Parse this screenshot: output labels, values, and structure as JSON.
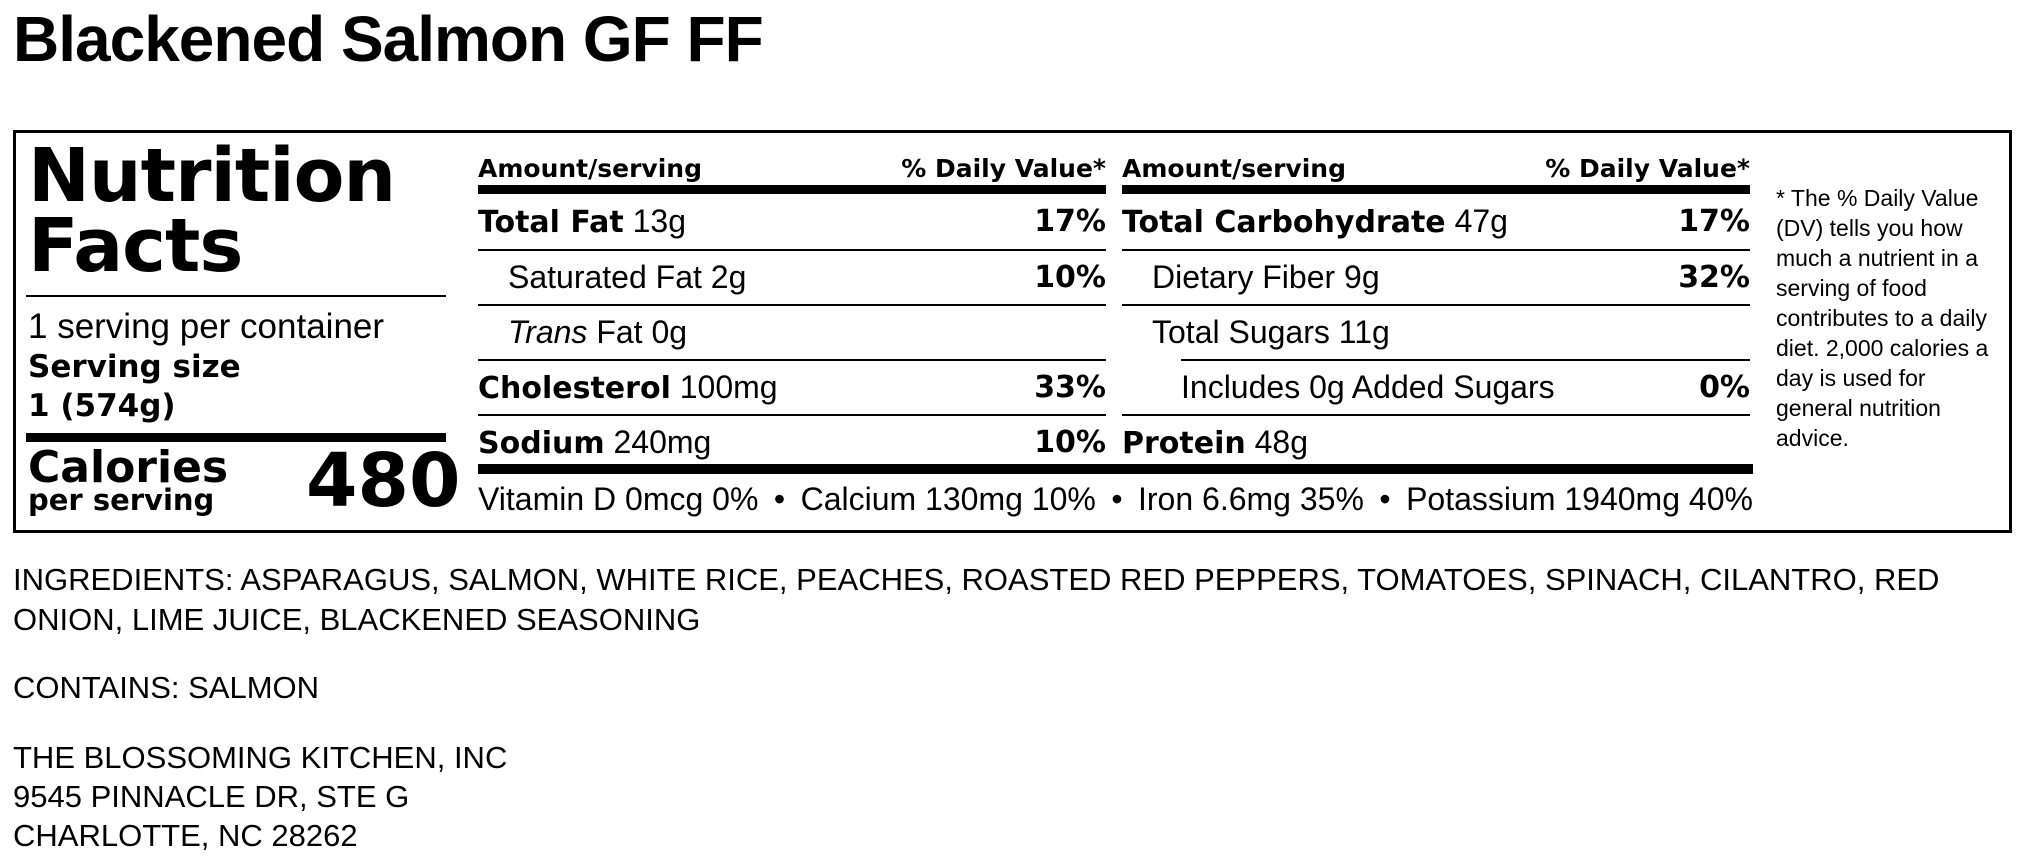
{
  "title": "Blackened Salmon GF FF",
  "label": {
    "heading": "Nutrition Facts",
    "servings_per_container": "1 serving per container",
    "serving_size_label": "Serving size",
    "serving_size": "1 (574g)",
    "calories_label": "Calories",
    "per_serving": "per serving",
    "calories": "480",
    "columns": [
      {
        "header_amount": "Amount/serving",
        "header_dv": "% Daily Value*",
        "rows": [
          {
            "name": "Total Fat",
            "amount": "13g",
            "dv": "17%",
            "children": [
              {
                "name": "Saturated Fat",
                "amount": "2g",
                "dv": "10%"
              },
              {
                "name_italic": "Trans",
                "name": "Fat",
                "amount": "0g"
              }
            ]
          },
          {
            "name": "Cholesterol",
            "amount": "100mg",
            "dv": "33%"
          },
          {
            "name": "Sodium",
            "amount": "240mg",
            "dv": "10%"
          }
        ]
      },
      {
        "header_amount": "Amount/serving",
        "header_dv": "% Daily Value*",
        "rows": [
          {
            "name": "Total Carbohydrate",
            "amount": "47g",
            "dv": "17%",
            "children": [
              {
                "name": "Dietary Fiber",
                "amount": "9g",
                "dv": "32%"
              },
              {
                "name": "Total Sugars",
                "amount": "11g",
                "children": [
                  {
                    "name": "Includes 0g Added Sugars",
                    "dv": "0%"
                  }
                ]
              }
            ]
          },
          {
            "name": "Protein",
            "amount": "48g"
          }
        ]
      }
    ],
    "vitamins": [
      "Vitamin D 0mcg 0%",
      "Calcium 130mg 10%",
      "Iron 6.6mg 35%",
      "Potassium 1940mg 40%"
    ],
    "separator": "•",
    "footnote": "* The % Daily Value (DV) tells you how much a nutrient in a serving of food contributes to a daily diet. 2,000 calories a day is used for general nutrition advice."
  },
  "ingredients": "INGREDIENTS: ASPARAGUS, SALMON, WHITE RICE, PEACHES, ROASTED RED PEPPERS, TOMATOES, SPINACH, CILANTRO, RED ONION, LIME JUICE, BLACKENED SEASONING",
  "contains": "CONTAINS: SALMON",
  "address": [
    "THE BLOSSOMING KITCHEN, INC",
    "9545 PINNACLE DR, STE G",
    "CHARLOTTE, NC 28262"
  ]
}
